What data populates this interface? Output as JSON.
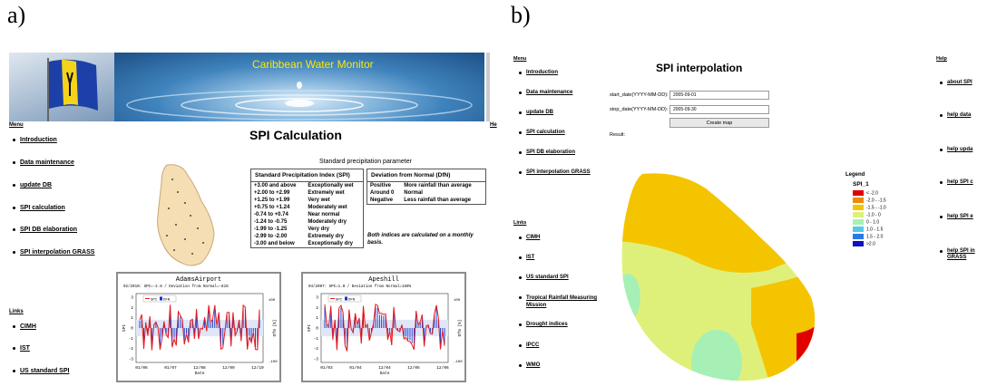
{
  "labels": {
    "a": "a)",
    "b": "b)"
  },
  "panel_a": {
    "banner_title": "Caribbean Water Monitor",
    "menu_header": "Menu",
    "menu": [
      "Introduction",
      "Data maintenance",
      "update DB",
      "SPI calculation",
      "SPI DB elaboration",
      "SPI interpolation GRASS"
    ],
    "links_header": "Links",
    "links": [
      "CIMH",
      "IST",
      "US standard SPI"
    ],
    "right_edge_label": "He",
    "page_title": "SPI Calculation",
    "param_title": "Standard precipitation parameter",
    "spi_table": {
      "header": "Standard Precipitation Index (SPI)",
      "rows": [
        [
          "+3.00 and above",
          "Exceptionally wet"
        ],
        [
          "+2.00 to +2.99",
          "Extremely wet"
        ],
        [
          "+1.25 to +1.99",
          "Very wet"
        ],
        [
          "+0.75 to +1.24",
          "Moderately wet"
        ],
        [
          "-0.74 to +0.74",
          "Near normal"
        ],
        [
          "-1.24 to -0.75",
          "Moderately dry"
        ],
        [
          "-1.99 to -1.25",
          "Very dry"
        ],
        [
          "-2.99 to -2.00",
          "Extremely dry"
        ],
        [
          "-3.00 and below",
          "Exceptionally dry"
        ]
      ]
    },
    "dfn_table": {
      "header": "Deviation from Normal (DfN)",
      "rows": [
        [
          "Positive",
          "More rainfall than average"
        ],
        [
          "Around 0",
          "Normal"
        ],
        [
          "Negative",
          "Less rainfall than average"
        ]
      ]
    },
    "note": "Both indices are calculated on a monthly basis.",
    "charts": [
      {
        "title": "AdamsAirport",
        "subtitle": "02/2010: SPI=-2.8 / Deviation from Normal=-81%",
        "legend": [
          "SPI",
          "DFN"
        ],
        "x_ticks": [
          "01/06",
          "01/07",
          "12/08",
          "12/09",
          "12/10"
        ],
        "y_ticks": [
          "3",
          "2",
          "1",
          "0",
          "-1",
          "-2",
          "-3"
        ],
        "xlabel": "Date",
        "ylabel": "SPI",
        "ylabel_right": "DfN [%]",
        "right_ticks": [
          "100",
          "-100"
        ],
        "spi_color": "#e81919",
        "dfn_color": "#1133cc"
      },
      {
        "title": "Apeshill",
        "subtitle": "04/2007: SPI=1.0 / Deviation from Normal=160%",
        "legend": [
          "SPI",
          "DFN"
        ],
        "x_ticks": [
          "01/03",
          "01/04",
          "12/04",
          "12/05",
          "12/06"
        ],
        "y_ticks": [
          "3",
          "2",
          "1",
          "0",
          "-1",
          "-2",
          "-3"
        ],
        "xlabel": "Date",
        "ylabel": "SPI",
        "ylabel_right": "DfN [%]",
        "right_ticks": [
          "100",
          "-100"
        ],
        "spi_color": "#e81919",
        "dfn_color": "#1133cc"
      }
    ]
  },
  "panel_b": {
    "menu_header": "Menu",
    "menu": [
      "Introduction",
      "Data maintenance",
      "update DB",
      "SPI calculation",
      "SPI DB elaboration",
      "SPI interpolation GRASS"
    ],
    "links_header": "Links",
    "links": [
      "CIMH",
      "IST",
      "US standard SPI",
      "Tropical Rainfall Measuring Mission",
      "Drought indices",
      "IPCC",
      "WMO"
    ],
    "page_title": "SPI interpolation",
    "start_label": "start_date(YYYY-MM-DD):",
    "start_value": "2005-09-01",
    "stop_label": "stop_date(YYYY-MM-DD):",
    "stop_value": "2005-09-30",
    "create_button": "Create map",
    "result_label": "Result:",
    "legend_title": "Legend",
    "legend_sub": "SPI_1",
    "legend": [
      {
        "label": "< -2.0",
        "color": "#e00000"
      },
      {
        "label": "-2.0 - -1.5",
        "color": "#f08a00"
      },
      {
        "label": "-1.5 - -1.0",
        "color": "#f5c400"
      },
      {
        "label": "-1.0 - 0",
        "color": "#dff07a"
      },
      {
        "label": "0 - 1.0",
        "color": "#a6f0b5"
      },
      {
        "label": "1.0 - 1.5",
        "color": "#55c8e8"
      },
      {
        "label": "1.5 - 2.0",
        "color": "#2a78e8"
      },
      {
        "label": ">2.0",
        "color": "#1010c8"
      }
    ],
    "help_header": "Help",
    "help_links": [
      "about SPI",
      "help data",
      "help upda",
      "help SPI c",
      "help SPI e",
      "help SPI in GRASS"
    ]
  }
}
